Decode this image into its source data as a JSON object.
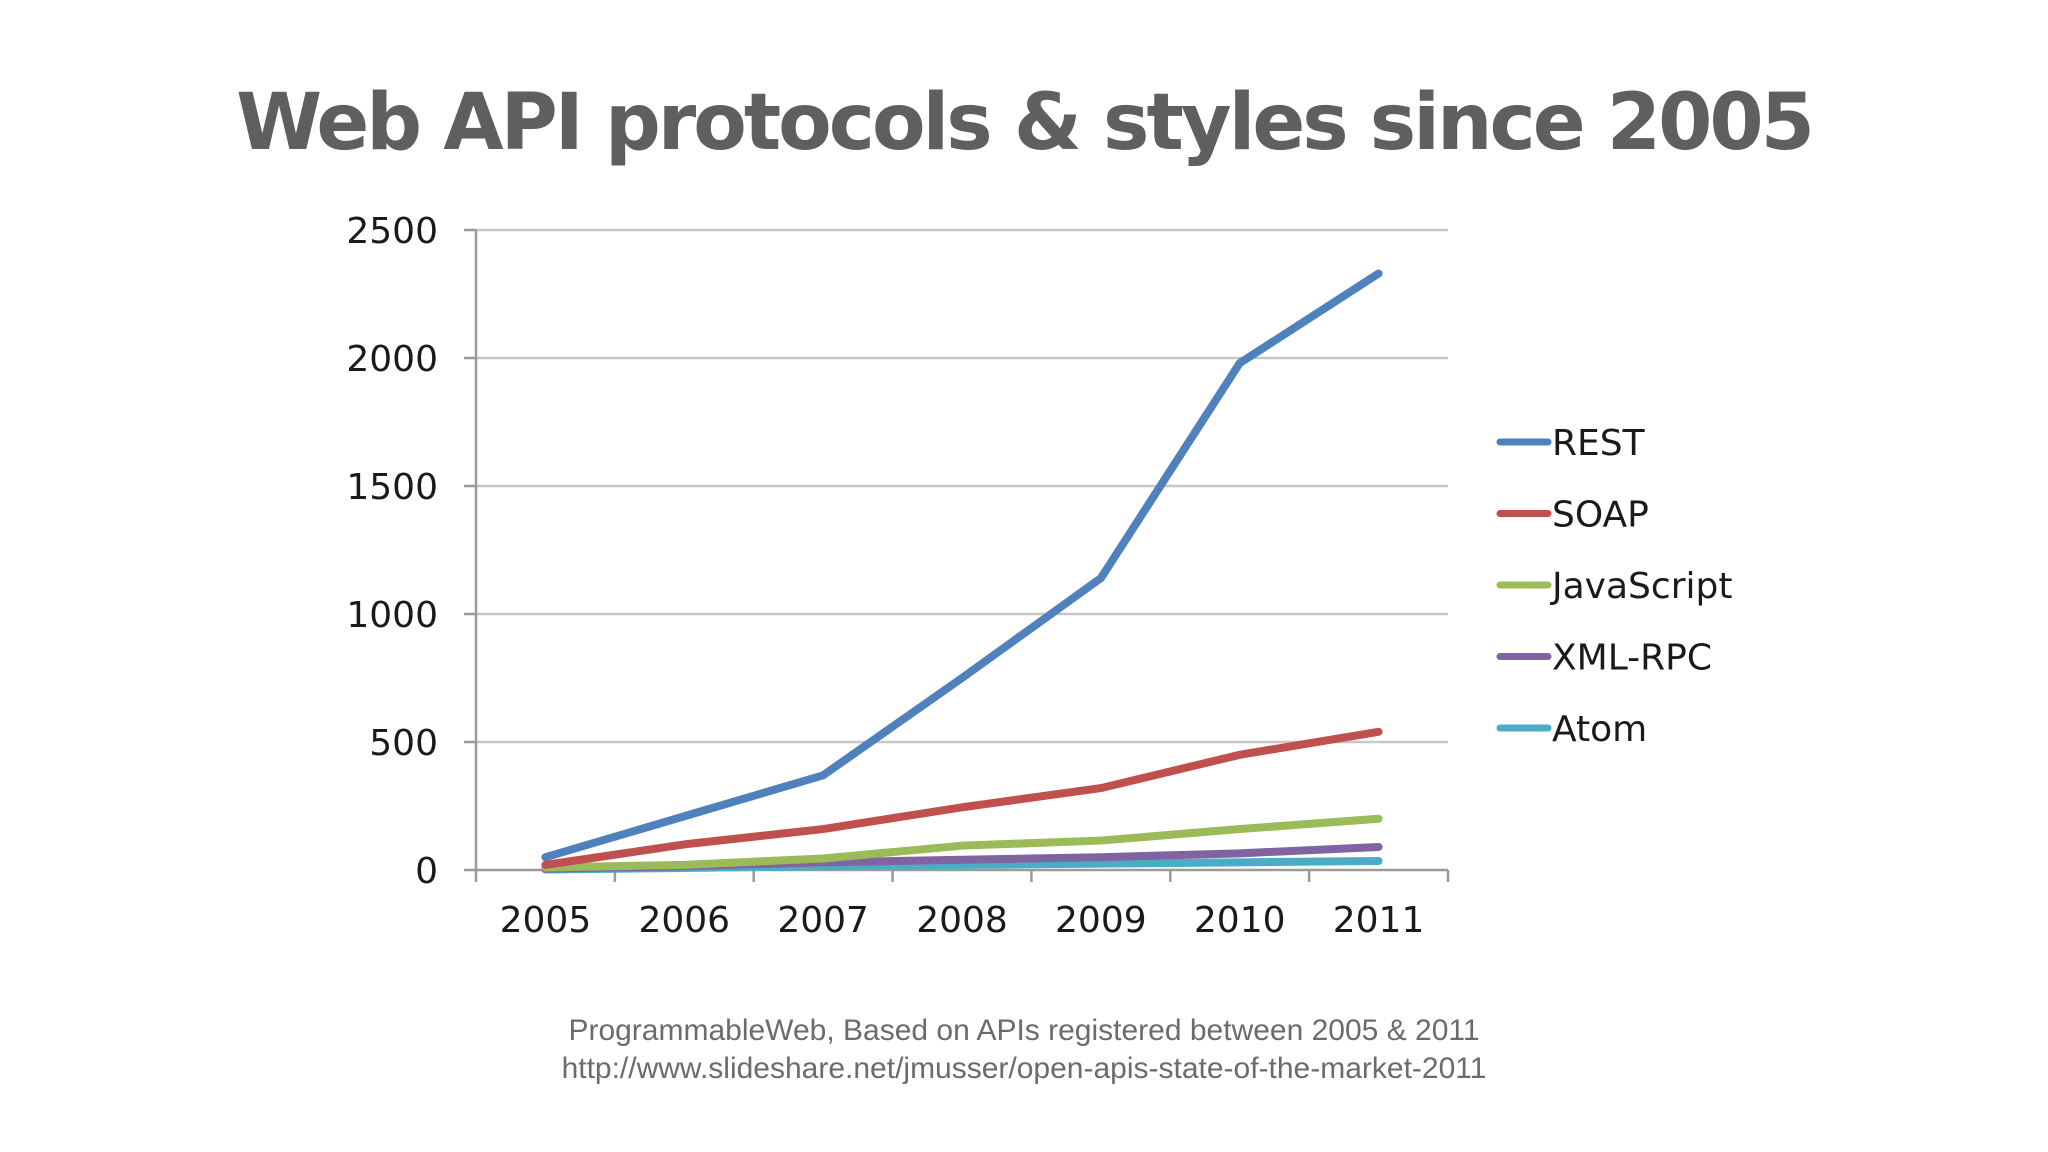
{
  "slide": {
    "title": "Web API protocols & styles since 2005",
    "source_line_1": "ProgrammableWeb, Based on APIs registered between 2005 & 2011",
    "source_line_2": "http://www.slideshare.net/jmusser/open-apis-state-of-the-market-2011"
  },
  "chart_data": {
    "type": "line",
    "title": "",
    "xlabel": "",
    "ylabel": "",
    "x": [
      "2005",
      "2006",
      "2007",
      "2008",
      "2009",
      "2010",
      "2011"
    ],
    "ylim": [
      0,
      2500
    ],
    "yticks": [
      "0",
      "500",
      "1000",
      "1500",
      "2000",
      "2500"
    ],
    "grid": true,
    "legend_position": "right",
    "series": [
      {
        "name": "REST",
        "color": "#4f81bd",
        "values": [
          50,
          210,
          370,
          750,
          1140,
          1980,
          2330
        ]
      },
      {
        "name": "SOAP",
        "color": "#c0504d",
        "values": [
          20,
          100,
          160,
          245,
          320,
          450,
          540
        ]
      },
      {
        "name": "JavaScript",
        "color": "#9bbb59",
        "values": [
          10,
          20,
          45,
          95,
          115,
          160,
          200
        ]
      },
      {
        "name": "XML-RPC",
        "color": "#8064a2",
        "values": [
          5,
          15,
          30,
          40,
          50,
          65,
          90
        ]
      },
      {
        "name": "Atom",
        "color": "#4bacc6",
        "values": [
          2,
          8,
          15,
          20,
          25,
          30,
          35
        ]
      }
    ]
  }
}
